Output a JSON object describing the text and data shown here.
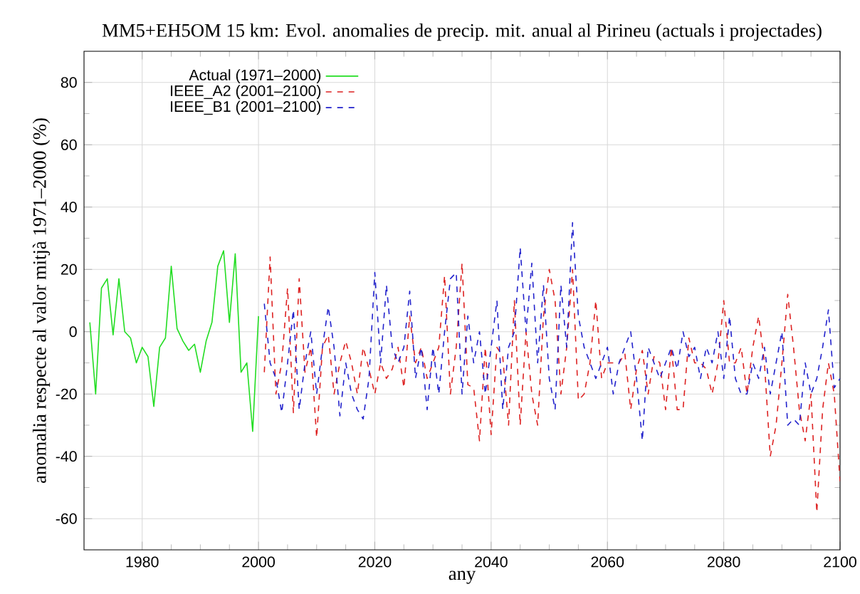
{
  "chart_data": {
    "type": "line",
    "title": "MM5+EH5OM 15 km: Evol. anomalies de precip. mit. anual al Pirineu (actuals i projectades)",
    "xlabel": "any",
    "ylabel": "anomalia respecte al valor mitjà 1971–2000 (%)",
    "xlim": [
      1970,
      2100
    ],
    "xticks": [
      1980,
      2000,
      2020,
      2040,
      2060,
      2080,
      2100
    ],
    "ylim": [
      -70,
      90
    ],
    "yticks": [
      -60,
      -40,
      -20,
      0,
      20,
      40,
      60,
      80
    ],
    "grid": true,
    "legend": "top left",
    "marker": "none",
    "series": [
      {
        "name": "Actual (1971–2000)",
        "color": "#22dd22",
        "line_style": "solid",
        "x": [
          1971,
          1972,
          1973,
          1974,
          1975,
          1976,
          1977,
          1978,
          1979,
          1980,
          1981,
          1982,
          1983,
          1984,
          1985,
          1986,
          1987,
          1988,
          1989,
          1990,
          1991,
          1992,
          1993,
          1994,
          1995,
          1996,
          1997,
          1998,
          1999,
          2000
        ],
        "values": [
          3,
          -20,
          14,
          17,
          -1,
          17,
          0,
          -2,
          -10,
          -5,
          -8,
          -24,
          -5,
          -2,
          21,
          1,
          -3,
          -6,
          -4,
          -13,
          -3,
          3,
          21,
          26,
          3,
          25,
          -13,
          -10,
          -32,
          5
        ]
      },
      {
        "name": "IEEE_A2 (2001–2100)",
        "color": "#dd2222",
        "line_style": "dashed",
        "x": [
          2001,
          2002,
          2003,
          2004,
          2005,
          2006,
          2007,
          2008,
          2009,
          2010,
          2011,
          2012,
          2013,
          2014,
          2015,
          2016,
          2017,
          2018,
          2019,
          2020,
          2021,
          2022,
          2023,
          2024,
          2025,
          2026,
          2027,
          2028,
          2029,
          2030,
          2031,
          2032,
          2033,
          2034,
          2035,
          2036,
          2037,
          2038,
          2039,
          2040,
          2041,
          2042,
          2043,
          2044,
          2045,
          2046,
          2047,
          2048,
          2049,
          2050,
          2051,
          2052,
          2053,
          2054,
          2055,
          2056,
          2057,
          2058,
          2059,
          2060,
          2061,
          2062,
          2063,
          2064,
          2065,
          2066,
          2067,
          2068,
          2069,
          2070,
          2071,
          2072,
          2073,
          2074,
          2075,
          2076,
          2077,
          2078,
          2079,
          2080,
          2081,
          2082,
          2083,
          2084,
          2085,
          2086,
          2087,
          2088,
          2089,
          2090,
          2091,
          2092,
          2093,
          2094,
          2095,
          2096,
          2097,
          2098,
          2099,
          2100
        ],
        "values": [
          -13,
          24,
          -20,
          -10,
          14,
          -26,
          17,
          -13,
          -5,
          -34,
          -5,
          -1,
          -20,
          -10,
          -3,
          -10,
          -20,
          -5,
          -12,
          -20,
          -10,
          -15,
          -12,
          -5,
          -18,
          5,
          -10,
          -5,
          -15,
          -10,
          -5,
          18,
          -20,
          -5,
          22,
          -17,
          -18,
          -35,
          -5,
          -33,
          -5,
          -8,
          -30,
          10,
          -30,
          0,
          -20,
          -30,
          5,
          20,
          10,
          -20,
          -5,
          20,
          -22,
          -20,
          -10,
          10,
          -15,
          -10,
          -10,
          -10,
          -7,
          -25,
          -12,
          -6,
          -20,
          -8,
          -10,
          -25,
          -5,
          -25,
          -25,
          -2,
          -10,
          -10,
          -12,
          -20,
          -10,
          10,
          -10,
          -10,
          -5,
          -20,
          -5,
          5,
          -10,
          -40,
          -30,
          -10,
          12,
          -5,
          -25,
          -35,
          -20,
          -58,
          -25,
          -10,
          -20,
          -48
        ]
      },
      {
        "name": "IEEE_B1 (2001–2100)",
        "color": "#2222cc",
        "line_style": "dashed",
        "x": [
          2001,
          2002,
          2003,
          2004,
          2005,
          2006,
          2007,
          2008,
          2009,
          2010,
          2011,
          2012,
          2013,
          2014,
          2015,
          2016,
          2017,
          2018,
          2019,
          2020,
          2021,
          2022,
          2023,
          2024,
          2025,
          2026,
          2027,
          2028,
          2029,
          2030,
          2031,
          2032,
          2033,
          2034,
          2035,
          2036,
          2037,
          2038,
          2039,
          2040,
          2041,
          2042,
          2043,
          2044,
          2045,
          2046,
          2047,
          2048,
          2049,
          2050,
          2051,
          2052,
          2053,
          2054,
          2055,
          2056,
          2057,
          2058,
          2059,
          2060,
          2061,
          2062,
          2063,
          2064,
          2065,
          2066,
          2067,
          2068,
          2069,
          2070,
          2071,
          2072,
          2073,
          2074,
          2075,
          2076,
          2077,
          2078,
          2079,
          2080,
          2081,
          2082,
          2083,
          2084,
          2085,
          2086,
          2087,
          2088,
          2089,
          2090,
          2091,
          2092,
          2093,
          2094,
          2095,
          2096,
          2097,
          2098,
          2099,
          2100
        ],
        "values": [
          9,
          -10,
          -15,
          -26,
          -10,
          7,
          -25,
          -10,
          0,
          -20,
          -5,
          8,
          -5,
          -27,
          -10,
          -20,
          -25,
          -28,
          -15,
          19,
          -10,
          15,
          -5,
          -10,
          -5,
          13,
          -15,
          -5,
          -25,
          -5,
          -20,
          0,
          17,
          19,
          -20,
          5,
          -10,
          0,
          -20,
          -5,
          10,
          -25,
          -5,
          0,
          27,
          0,
          22,
          -10,
          15,
          -15,
          -25,
          15,
          -5,
          35,
          5,
          -5,
          -10,
          -15,
          -10,
          -5,
          -20,
          -10,
          -5,
          0,
          -15,
          -35,
          -5,
          -10,
          -15,
          -10,
          -5,
          -12,
          0,
          -8,
          -5,
          -15,
          -5,
          -10,
          0,
          -15,
          5,
          -15,
          -20,
          -20,
          -10,
          -15,
          -5,
          -20,
          -10,
          0,
          -30,
          -28,
          -30,
          -10,
          -20,
          -15,
          -5,
          7,
          -18,
          -15
        ]
      }
    ]
  }
}
